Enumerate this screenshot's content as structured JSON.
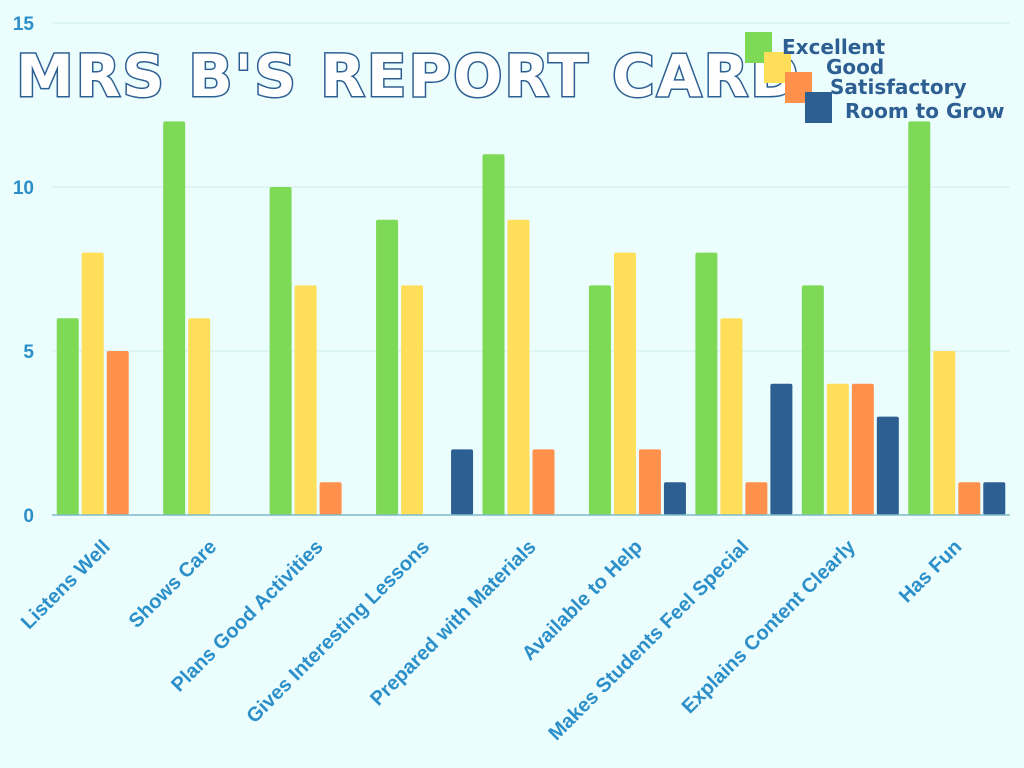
{
  "chart_data": {
    "type": "bar",
    "title": "MRS B'S REPORT CARD",
    "categories": [
      "Listens Well",
      "Shows Care",
      "Plans Good Activities",
      "Gives Interesting Lessons",
      "Prepared with Materials",
      "Available to Help",
      "Makes Students Feel Special",
      "Explains Content Clearly",
      "Has Fun"
    ],
    "series": [
      {
        "name": "Excellent",
        "color": "#7ed957",
        "values": [
          6,
          12,
          10,
          9,
          11,
          7,
          8,
          7,
          12
        ]
      },
      {
        "name": "Good",
        "color": "#ffde59",
        "values": [
          8,
          6,
          7,
          7,
          9,
          8,
          6,
          4,
          5
        ]
      },
      {
        "name": "Satisfactory",
        "color": "#ff914d",
        "values": [
          5,
          0,
          1,
          0,
          2,
          2,
          1,
          4,
          1
        ]
      },
      {
        "name": "Room to Grow",
        "color": "#2e5f93",
        "values": [
          0,
          0,
          0,
          2,
          0,
          1,
          4,
          3,
          1
        ]
      }
    ],
    "yticks": [
      0,
      5,
      10,
      15
    ],
    "ylim": [
      0,
      15
    ],
    "grid": true,
    "legend": "top-right"
  }
}
